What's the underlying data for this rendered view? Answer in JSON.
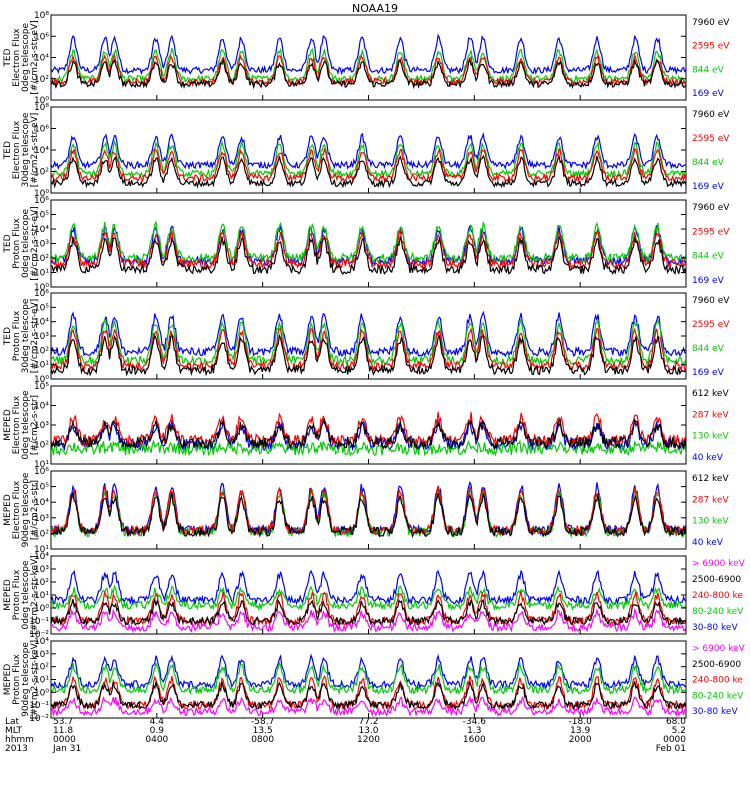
{
  "title": "NOAA19",
  "chart_data": [
    {
      "type": "line",
      "ylabel": [
        "TED",
        "Electron Flux",
        "0deg telescope",
        "[#/cm2-s-str-eV]"
      ],
      "ylim": [
        1,
        100000000
      ],
      "log_y": true,
      "yticks": [
        "10⁰",
        "10²",
        "10⁴",
        "10⁶",
        "10⁸"
      ],
      "yexps": [
        0,
        2,
        4,
        6,
        8
      ],
      "series": [
        {
          "name": "7960 eV",
          "color": "#000000",
          "baseline": 1.5,
          "peak": 3.5
        },
        {
          "name": "2595 eV",
          "color": "#ff0000",
          "baseline": 1.7,
          "peak": 4.0
        },
        {
          "name": "844 eV",
          "color": "#00cc00",
          "baseline": 2.0,
          "peak": 4.6
        },
        {
          "name": "169 eV",
          "color": "#0000ff",
          "baseline": 2.8,
          "peak": 5.8
        }
      ]
    },
    {
      "type": "line",
      "ylabel": [
        "TED",
        "Electron Flux",
        "30deg telescope",
        "[#/cm2-s-str-eV]"
      ],
      "ylim": [
        1,
        100000000
      ],
      "log_y": true,
      "yticks": [
        "10⁰",
        "10²",
        "10⁴",
        "10⁶",
        "10⁸"
      ],
      "yexps": [
        0,
        2,
        4,
        6,
        8
      ],
      "series": [
        {
          "name": "7960 eV",
          "color": "#000000",
          "baseline": 0.9,
          "peak": 3.2
        },
        {
          "name": "2595 eV",
          "color": "#ff0000",
          "baseline": 1.4,
          "peak": 3.9
        },
        {
          "name": "844 eV",
          "color": "#00cc00",
          "baseline": 1.8,
          "peak": 4.5
        },
        {
          "name": "169 eV",
          "color": "#0000ff",
          "baseline": 2.6,
          "peak": 5.2
        }
      ]
    },
    {
      "type": "line",
      "ylabel": [
        "TED",
        "Proton Flux",
        "0deg telescope",
        "[#/cm2-s-str-eV]"
      ],
      "ylim": [
        1,
        1000000
      ],
      "log_y": true,
      "yticks": [
        "10⁰",
        "10¹",
        "10²",
        "10³",
        "10⁴",
        "10⁵",
        "10⁶"
      ],
      "yexps": [
        0,
        1,
        2,
        3,
        4,
        5,
        6
      ],
      "series": [
        {
          "name": "7960 eV",
          "color": "#000000",
          "baseline": 1.2,
          "peak": 3.2
        },
        {
          "name": "2595 eV",
          "color": "#ff0000",
          "baseline": 1.6,
          "peak": 3.6
        },
        {
          "name": "844 eV",
          "color": "#00cc00",
          "baseline": 2.0,
          "peak": 4.2
        },
        {
          "name": "169 eV",
          "color": "#0000ff",
          "baseline": 1.8,
          "peak": 4.0
        }
      ]
    },
    {
      "type": "line",
      "ylabel": [
        "TED",
        "Proton Flux",
        "30deg telescope",
        "[#/cm2-s-str-eV]"
      ],
      "ylim": [
        1,
        1000000
      ],
      "log_y": true,
      "yticks": [
        "10⁰",
        "10¹",
        "10²",
        "10³",
        "10⁴",
        "10⁵",
        "10⁶"
      ],
      "yexps": [
        0,
        1,
        2,
        3,
        4,
        5,
        6
      ],
      "series": [
        {
          "name": "7960 eV",
          "color": "#000000",
          "baseline": 0.6,
          "peak": 2.8
        },
        {
          "name": "2595 eV",
          "color": "#ff0000",
          "baseline": 0.9,
          "peak": 3.3
        },
        {
          "name": "844 eV",
          "color": "#00cc00",
          "baseline": 1.3,
          "peak": 3.9
        },
        {
          "name": "169 eV",
          "color": "#0000ff",
          "baseline": 1.9,
          "peak": 4.4
        }
      ]
    },
    {
      "type": "line",
      "ylabel": [
        "MEPED",
        "Electron Flux",
        "0deg telescope",
        "[#/cm2-s-str]"
      ],
      "ylim": [
        10,
        100000
      ],
      "log_y": true,
      "yticks": [
        "10¹",
        "10²",
        "10³",
        "10⁴",
        "10⁵"
      ],
      "yexps": [
        1,
        2,
        3,
        4,
        5
      ],
      "series": [
        {
          "name": "612 keV",
          "color": "#000000",
          "baseline": 2.1,
          "peak": 3.0
        },
        {
          "name": "287 keV",
          "color": "#ff0000",
          "baseline": 2.2,
          "peak": 3.4
        },
        {
          "name": "130 keV",
          "color": "#00cc00",
          "baseline": 1.75,
          "peak": 1.9
        },
        {
          "name": "40 keV",
          "color": "#0000ff",
          "baseline": 2.0,
          "peak": 3.0
        }
      ]
    },
    {
      "type": "line",
      "ylabel": [
        "MEPED",
        "Electron Flux",
        "90deg telescope",
        "[#/cm2-s-str]"
      ],
      "ylim": [
        10,
        1000000
      ],
      "log_y": true,
      "yticks": [
        "10¹",
        "10²",
        "10³",
        "10⁴",
        "10⁵",
        "10⁶"
      ],
      "yexps": [
        1,
        2,
        3,
        4,
        5,
        6
      ],
      "series": [
        {
          "name": "612 keV",
          "color": "#000000",
          "baseline": 2.1,
          "peak": 4.3
        },
        {
          "name": "287 keV",
          "color": "#ff0000",
          "baseline": 2.2,
          "peak": 4.7
        },
        {
          "name": "130 keV",
          "color": "#00cc00",
          "baseline": 2.1,
          "peak": 4.6
        },
        {
          "name": "40 keV",
          "color": "#0000ff",
          "baseline": 2.2,
          "peak": 5.0
        }
      ]
    },
    {
      "type": "line",
      "ylabel": [
        "MEPED",
        "Proton Flux",
        "0deg telescope",
        "[#/cm2-s-str-keV]"
      ],
      "ylim": [
        0.01,
        10000
      ],
      "log_y": true,
      "yticks": [
        "10⁻²",
        "10⁻¹",
        "10⁰",
        "10¹",
        "10²",
        "10³",
        "10⁴"
      ],
      "yexps": [
        -2,
        -1,
        0,
        1,
        2,
        3,
        4
      ],
      "series": [
        {
          "name": "> 6900 keV",
          "color": "#ff00ff",
          "baseline": -1.5,
          "peak": -0.4
        },
        {
          "name": "2500-6900",
          "color": "#000000",
          "baseline": -1.0,
          "peak": 0.4
        },
        {
          "name": "240-800 ke",
          "color": "#ff0000",
          "baseline": -1.0,
          "peak": 1.0
        },
        {
          "name": "80-240 keV",
          "color": "#00cc00",
          "baseline": 0.2,
          "peak": 1.4
        },
        {
          "name": "30-80 keV",
          "color": "#0000ff",
          "baseline": 0.6,
          "peak": 2.6
        }
      ]
    },
    {
      "type": "line",
      "ylabel": [
        "MEPED",
        "Proton Flux",
        "90deg telescope",
        "[#/cm2-s-str-keV]"
      ],
      "ylim": [
        0.01,
        10000
      ],
      "log_y": true,
      "yticks": [
        "10⁻²",
        "10⁻¹",
        "10⁰",
        "10¹",
        "10²",
        "10³",
        "10⁴"
      ],
      "yexps": [
        -2,
        -1,
        0,
        1,
        2,
        3,
        4
      ],
      "series": [
        {
          "name": "> 6900 keV",
          "color": "#ff00ff",
          "baseline": -1.5,
          "peak": -0.6
        },
        {
          "name": "2500-6900",
          "color": "#000000",
          "baseline": -1.0,
          "peak": 0.6
        },
        {
          "name": "240-800 ke",
          "color": "#ff0000",
          "baseline": -1.0,
          "peak": 1.0
        },
        {
          "name": "80-240 keV",
          "color": "#00cc00",
          "baseline": 0.2,
          "peak": 2.0
        },
        {
          "name": "30-80 keV",
          "color": "#0000ff",
          "baseline": 0.6,
          "peak": 2.6
        }
      ]
    }
  ],
  "xaxis": {
    "row_labels": [
      "Lat",
      "MLT",
      "hhmm",
      "2013"
    ],
    "columns": [
      {
        "lat": "53.7",
        "mlt": "11.8",
        "hhmm": "0000",
        "date": "Jan 31"
      },
      {
        "lat": "4.4",
        "mlt": "0.9",
        "hhmm": "0400",
        "date": ""
      },
      {
        "lat": "-58.7",
        "mlt": "13.5",
        "hhmm": "0800",
        "date": ""
      },
      {
        "lat": "77.2",
        "mlt": "13.0",
        "hhmm": "1200",
        "date": ""
      },
      {
        "lat": "-34.6",
        "mlt": "1.3",
        "hhmm": "1600",
        "date": ""
      },
      {
        "lat": "-18.0",
        "mlt": "13.9",
        "hhmm": "2000",
        "date": ""
      },
      {
        "lat": "68.0",
        "mlt": "5.2",
        "hhmm": "0000",
        "date": "Feb 01"
      }
    ]
  }
}
